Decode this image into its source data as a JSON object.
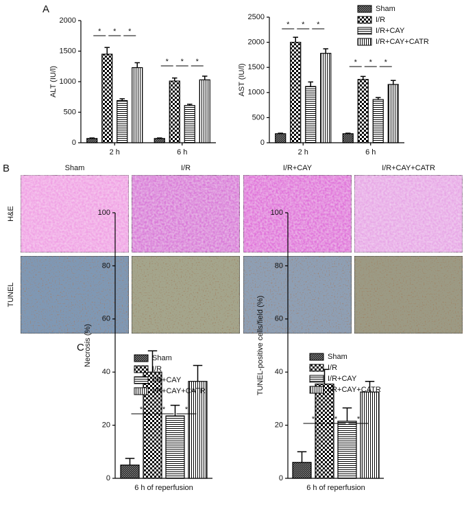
{
  "panel_labels": [
    "A",
    "B",
    "C"
  ],
  "micrographs": {
    "columns": [
      "Sham",
      "I/R",
      "I/R+CAY",
      "I/R+CAY+CATR"
    ],
    "rows": [
      "H&E",
      "TUNEL"
    ]
  },
  "chart_data": [
    {
      "type": "bar",
      "y_label": "ALT (IU/l)",
      "categories": [
        "2 h",
        "6 h"
      ],
      "ylim": [
        0,
        2000
      ],
      "yticks": [
        0,
        500,
        1000,
        1500,
        2000
      ],
      "legend": false,
      "series": [
        {
          "color": "#000000",
          "pattern": "crosshatch",
          "values": [
            70,
            70
          ],
          "errors": [
            8,
            8
          ]
        },
        {
          "color": "#000000",
          "pattern": "checker",
          "values": [
            1450,
            1010
          ],
          "errors": [
            110,
            50
          ]
        },
        {
          "color": "#000000",
          "pattern": "hlines",
          "values": [
            690,
            610
          ],
          "errors": [
            30,
            20
          ]
        },
        {
          "color": "#000000",
          "pattern": "vlines",
          "values": [
            1230,
            1030
          ],
          "errors": [
            80,
            60
          ]
        }
      ],
      "significance": [
        {
          "category": 0,
          "between": [
            0,
            1
          ],
          "label": "*"
        },
        {
          "category": 0,
          "between": [
            1,
            2
          ],
          "label": "*"
        },
        {
          "category": 0,
          "between": [
            2,
            3
          ],
          "label": "*"
        },
        {
          "category": 1,
          "between": [
            0,
            1
          ],
          "label": "*"
        },
        {
          "category": 1,
          "between": [
            1,
            2
          ],
          "label": "*"
        },
        {
          "category": 1,
          "between": [
            2,
            3
          ],
          "label": "*"
        }
      ]
    },
    {
      "type": "bar",
      "y_label": "AST (IU/l)",
      "categories": [
        "2 h",
        "6 h"
      ],
      "ylim": [
        0,
        2500
      ],
      "yticks": [
        0,
        500,
        1000,
        1500,
        2000,
        2500
      ],
      "legend": "outside upper right",
      "series": [
        {
          "name": "Sham",
          "color": "#000000",
          "pattern": "crosshatch",
          "values": [
            180,
            180
          ],
          "errors": [
            10,
            10
          ]
        },
        {
          "name": "I/R",
          "color": "#000000",
          "pattern": "checker",
          "values": [
            2000,
            1260
          ],
          "errors": [
            100,
            60
          ]
        },
        {
          "name": "I/R+CAY",
          "color": "#000000",
          "pattern": "hlines",
          "values": [
            1120,
            860
          ],
          "errors": [
            90,
            40
          ]
        },
        {
          "name": "I/R+CAY+CATR",
          "color": "#000000",
          "pattern": "vlines",
          "values": [
            1780,
            1160
          ],
          "errors": [
            90,
            80
          ]
        }
      ],
      "significance": [
        {
          "category": 0,
          "between": [
            0,
            1
          ],
          "label": "*"
        },
        {
          "category": 0,
          "between": [
            1,
            2
          ],
          "label": "*"
        },
        {
          "category": 0,
          "between": [
            2,
            3
          ],
          "label": "*"
        },
        {
          "category": 1,
          "between": [
            0,
            1
          ],
          "label": "*"
        },
        {
          "category": 1,
          "between": [
            1,
            2
          ],
          "label": "*"
        },
        {
          "category": 1,
          "between": [
            2,
            3
          ],
          "label": "*"
        }
      ]
    },
    {
      "type": "bar",
      "y_label": "Necrosis (%)",
      "categories": [
        "6 h of reperfusion"
      ],
      "ylim": [
        0,
        100
      ],
      "yticks": [
        0,
        20,
        40,
        60,
        80,
        100
      ],
      "legend": "upper left",
      "series": [
        {
          "name": "Sham",
          "color": "#000000",
          "pattern": "crosshatch",
          "values": [
            5
          ],
          "errors": [
            2.5
          ]
        },
        {
          "name": "I/R",
          "color": "#000000",
          "pattern": "checker",
          "values": [
            40
          ],
          "errors": [
            8
          ]
        },
        {
          "name": "I/R+CAY",
          "color": "#000000",
          "pattern": "hlines",
          "values": [
            23.5
          ],
          "errors": [
            4
          ]
        },
        {
          "name": "I/R+CAY+CATR",
          "color": "#000000",
          "pattern": "vlines",
          "values": [
            36.5
          ],
          "errors": [
            6
          ]
        }
      ],
      "significance": [
        {
          "category": 0,
          "between": [
            0,
            1
          ],
          "label": "*"
        },
        {
          "category": 0,
          "between": [
            1,
            2
          ],
          "label": "*"
        },
        {
          "category": 0,
          "between": [
            2,
            3
          ],
          "label": "*"
        }
      ]
    },
    {
      "type": "bar",
      "y_label": "TUNEL-positive cells/field (%)",
      "categories": [
        "6 h of reperfusion"
      ],
      "ylim": [
        0,
        100
      ],
      "yticks": [
        0,
        20,
        40,
        60,
        80,
        100
      ],
      "legend": "upper left",
      "series": [
        {
          "name": "Sham",
          "color": "#000000",
          "pattern": "crosshatch",
          "values": [
            6
          ],
          "errors": [
            4
          ]
        },
        {
          "name": "I/R",
          "color": "#000000",
          "pattern": "checker",
          "values": [
            35.5
          ],
          "errors": [
            5.5
          ]
        },
        {
          "name": "I/R+CAY",
          "color": "#000000",
          "pattern": "hlines",
          "values": [
            21.5
          ],
          "errors": [
            5
          ]
        },
        {
          "name": "I/R+CAY+CATR",
          "color": "#000000",
          "pattern": "vlines",
          "values": [
            32.5
          ],
          "errors": [
            4
          ]
        }
      ],
      "significance": [
        {
          "category": 0,
          "between": [
            0,
            1
          ],
          "label": "*"
        },
        {
          "category": 0,
          "between": [
            1,
            2
          ],
          "label": "*"
        },
        {
          "category": 0,
          "between": [
            2,
            3
          ],
          "label": "*"
        }
      ]
    }
  ]
}
